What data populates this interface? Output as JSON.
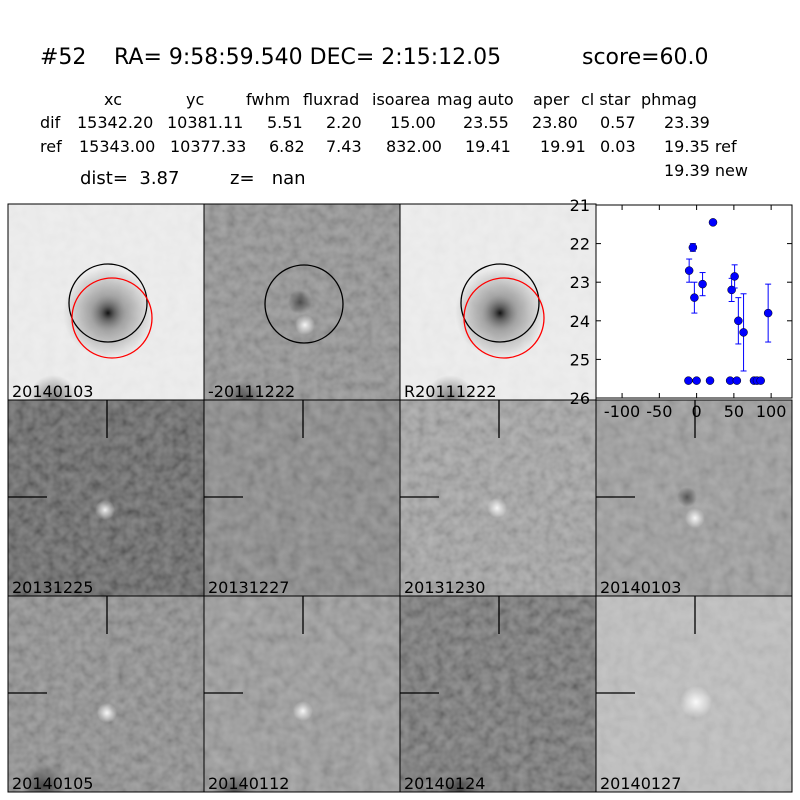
{
  "header": {
    "id": "#52",
    "coords": "RA= 9:58:59.540 DEC= 2:15:12.05",
    "score": "score=60.0",
    "dist": "dist=  3.87",
    "z": "z=   nan"
  },
  "table": {
    "columns": [
      "xc",
      "yc",
      "fwhm",
      "fluxrad",
      "isoarea",
      "mag auto",
      "aper",
      "cl star",
      "phmag"
    ],
    "rows": [
      [
        "dif",
        "15342.20",
        "10381.11",
        "5.51",
        "2.20",
        "15.00",
        "23.55",
        "23.80",
        "0.57",
        "23.39"
      ],
      [
        "ref",
        "15343.00",
        "10377.33",
        "6.82",
        "7.43",
        "832.00",
        "19.41",
        "19.91",
        "0.03",
        "19.35 ref"
      ]
    ],
    "extra": "19.39 new"
  },
  "panels": [
    {
      "label": "20140103"
    },
    {
      "label": "-20111222"
    },
    {
      "label": "R20111222"
    },
    {
      "label": "20131225"
    },
    {
      "label": "20131227"
    },
    {
      "label": "20131230"
    },
    {
      "label": "20140103",
      "color": "#ff0000"
    },
    {
      "label": "20140105"
    },
    {
      "label": "20140112"
    },
    {
      "label": "20140124"
    },
    {
      "label": "20140127"
    }
  ],
  "chart_data": {
    "type": "scatter",
    "x": [
      -10,
      -5,
      -3,
      8,
      22,
      47,
      51,
      56,
      63,
      96,
      -11,
      0,
      18,
      45,
      54,
      77,
      81,
      86
    ],
    "series": [
      {
        "color": "#0000ff",
        "values": [
          22.7,
          22.1,
          23.4,
          23.05,
          21.45,
          23.2,
          22.85,
          24.0,
          24.3,
          23.8,
          25.55,
          25.55,
          25.55,
          25.55,
          25.55,
          25.55,
          25.55,
          25.55
        ],
        "errors": [
          0.3,
          0.1,
          0.4,
          0.3,
          0.05,
          0.3,
          0.3,
          0.6,
          1.0,
          0.75,
          0,
          0,
          0,
          0,
          0,
          0,
          0,
          0
        ]
      }
    ],
    "xlim": [
      -135,
      128
    ],
    "ylim": [
      26,
      21
    ],
    "xticks": [
      -100,
      -50,
      0,
      50,
      100
    ],
    "yticks": [
      21,
      22,
      23,
      24,
      25,
      26
    ]
  }
}
